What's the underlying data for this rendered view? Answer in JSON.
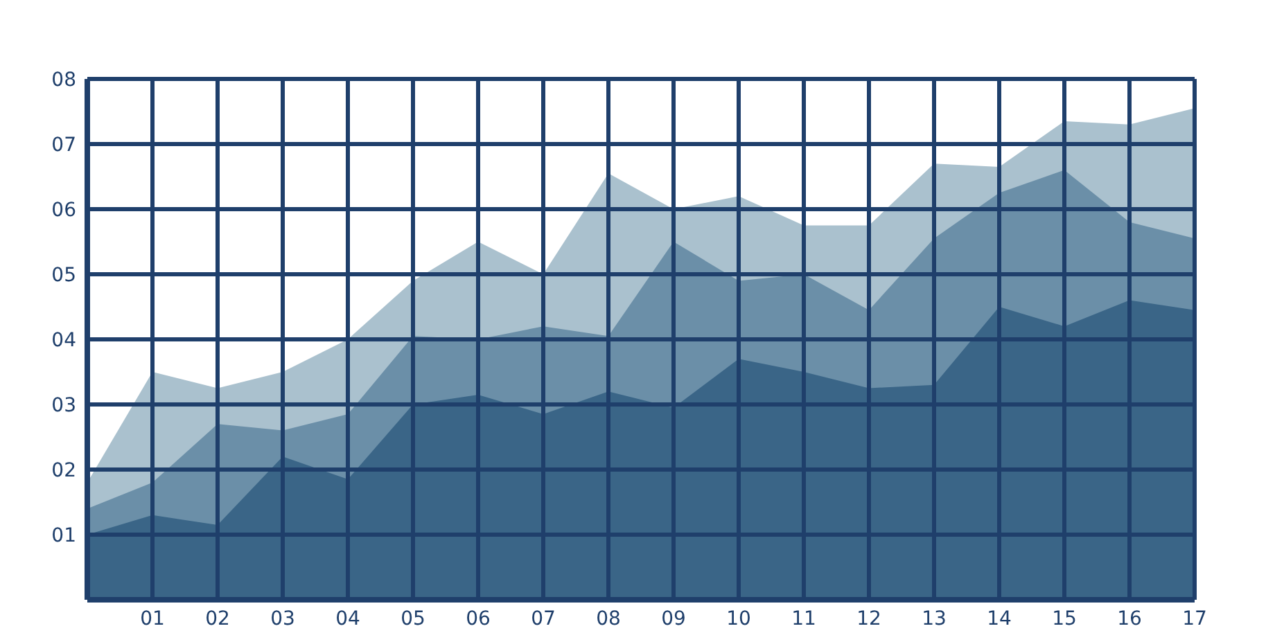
{
  "chart_data": {
    "type": "area",
    "x": [
      0,
      1,
      2,
      3,
      4,
      5,
      6,
      7,
      8,
      9,
      10,
      11,
      12,
      13,
      14,
      15,
      16,
      17
    ],
    "series": [
      {
        "color": "#aac1ce",
        "values": [
          1.8,
          3.5,
          3.25,
          3.5,
          4.0,
          4.9,
          5.5,
          5.0,
          6.55,
          6.0,
          6.2,
          5.75,
          5.75,
          6.7,
          6.65,
          7.35,
          7.3,
          7.55
        ]
      },
      {
        "color": "#6b8fa8",
        "values": [
          1.4,
          1.8,
          2.7,
          2.6,
          2.85,
          4.05,
          4.0,
          4.2,
          4.05,
          5.5,
          4.9,
          5.0,
          4.45,
          5.55,
          6.25,
          6.6,
          5.8,
          5.55
        ]
      },
      {
        "color": "#3a6587",
        "values": [
          1.0,
          1.3,
          1.15,
          2.2,
          1.85,
          3.0,
          3.15,
          2.85,
          3.2,
          2.95,
          3.7,
          3.5,
          3.25,
          3.3,
          4.5,
          4.2,
          4.6,
          4.45
        ]
      }
    ],
    "xlim": [
      0,
      17
    ],
    "xticks": [
      {
        "value": 1,
        "label": "01"
      },
      {
        "value": 2,
        "label": "02"
      },
      {
        "value": 3,
        "label": "03"
      },
      {
        "value": 4,
        "label": "04"
      },
      {
        "value": 5,
        "label": "05"
      },
      {
        "value": 6,
        "label": "06"
      },
      {
        "value": 7,
        "label": "07"
      },
      {
        "value": 8,
        "label": "08"
      },
      {
        "value": 9,
        "label": "09"
      },
      {
        "value": 10,
        "label": "10"
      },
      {
        "value": 11,
        "label": "11"
      },
      {
        "value": 12,
        "label": "12"
      },
      {
        "value": 13,
        "label": "13"
      },
      {
        "value": 14,
        "label": "14"
      },
      {
        "value": 15,
        "label": "15"
      },
      {
        "value": 16,
        "label": "16"
      },
      {
        "value": 17,
        "label": "17"
      }
    ],
    "ylim": [
      0,
      8
    ],
    "yticks": [
      {
        "value": 1,
        "label": "01"
      },
      {
        "value": 2,
        "label": "02"
      },
      {
        "value": 3,
        "label": "03"
      },
      {
        "value": 4,
        "label": "04"
      },
      {
        "value": 5,
        "label": "05"
      },
      {
        "value": 6,
        "label": "06"
      },
      {
        "value": 7,
        "label": "07"
      },
      {
        "value": 8,
        "label": "08"
      }
    ],
    "grid": true
  }
}
